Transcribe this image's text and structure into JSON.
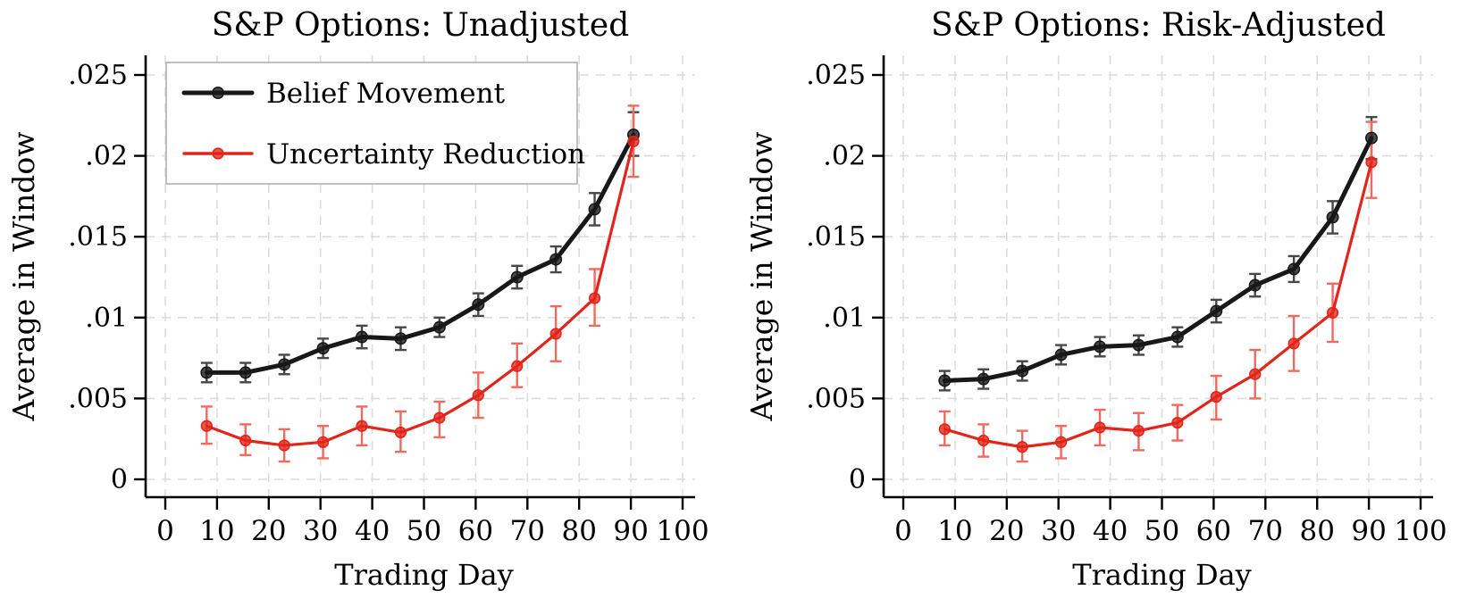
{
  "figure": {
    "background": "#ffffff"
  },
  "chart_data": [
    {
      "type": "line",
      "title": "S&P Options: Unadjusted",
      "xlabel": "Trading Day",
      "ylabel": "Average in Window",
      "x_ticks": [
        0,
        10,
        20,
        30,
        40,
        50,
        60,
        70,
        80,
        90,
        100
      ],
      "y_ticks": [
        {
          "value": 0.0,
          "label": "0"
        },
        {
          "value": 0.005,
          "label": ".005"
        },
        {
          "value": 0.01,
          "label": ".01"
        },
        {
          "value": 0.015,
          "label": ".015"
        },
        {
          "value": 0.02,
          "label": ".02"
        },
        {
          "value": 0.025,
          "label": ".025"
        }
      ],
      "xlim": [
        -3.8,
        102.4
      ],
      "ylim": [
        -0.0011,
        0.0262
      ],
      "grid": true,
      "legend": {
        "show": true,
        "position": "top-left"
      },
      "x": [
        8,
        15.5,
        23,
        30.5,
        38,
        45.5,
        53,
        60.5,
        68,
        75.5,
        83,
        90.5
      ],
      "series": [
        {
          "name": "Belief Movement",
          "color": "#181818",
          "error_color": "#474747",
          "values": [
            0.0066,
            0.0066,
            0.0071,
            0.0081,
            0.0088,
            0.0087,
            0.0094,
            0.0108,
            0.0125,
            0.0136,
            0.0167,
            0.0213
          ],
          "ci_low": [
            0.006,
            0.006,
            0.0065,
            0.0075,
            0.0081,
            0.008,
            0.0088,
            0.0101,
            0.0118,
            0.0128,
            0.0157,
            0.02
          ],
          "ci_high": [
            0.0072,
            0.0072,
            0.0077,
            0.0087,
            0.0095,
            0.0094,
            0.01,
            0.0115,
            0.0132,
            0.0144,
            0.0177,
            0.0227
          ]
        },
        {
          "name": "Uncertainty Reduction",
          "color": "#e1251b",
          "error_color": "#ee6a60",
          "values": [
            0.0033,
            0.0024,
            0.0021,
            0.0023,
            0.0033,
            0.0029,
            0.0038,
            0.0052,
            0.007,
            0.009,
            0.0112,
            0.0209
          ],
          "ci_low": [
            0.0022,
            0.0015,
            0.0011,
            0.0013,
            0.0021,
            0.0017,
            0.0026,
            0.0038,
            0.0057,
            0.0073,
            0.0095,
            0.0187
          ],
          "ci_high": [
            0.0045,
            0.0034,
            0.0031,
            0.0033,
            0.0045,
            0.0042,
            0.0048,
            0.0066,
            0.0084,
            0.0107,
            0.013,
            0.0231
          ]
        }
      ]
    },
    {
      "type": "line",
      "title": "S&P Options: Risk-Adjusted",
      "xlabel": "Trading Day",
      "ylabel": "Average in Window",
      "x_ticks": [
        0,
        10,
        20,
        30,
        40,
        50,
        60,
        70,
        80,
        90,
        100
      ],
      "y_ticks": [
        {
          "value": 0.0,
          "label": "0"
        },
        {
          "value": 0.005,
          "label": ".005"
        },
        {
          "value": 0.01,
          "label": ".01"
        },
        {
          "value": 0.015,
          "label": ".015"
        },
        {
          "value": 0.02,
          "label": ".02"
        },
        {
          "value": 0.025,
          "label": ".025"
        }
      ],
      "xlim": [
        -3.8,
        102.4
      ],
      "ylim": [
        -0.0011,
        0.0262
      ],
      "grid": true,
      "legend": {
        "show": false,
        "position": "none"
      },
      "x": [
        8,
        15.5,
        23,
        30.5,
        38,
        45.5,
        53,
        60.5,
        68,
        75.5,
        83,
        90.5
      ],
      "series": [
        {
          "name": "Belief Movement",
          "color": "#181818",
          "error_color": "#474747",
          "values": [
            0.0061,
            0.0062,
            0.0067,
            0.0077,
            0.0082,
            0.0083,
            0.0088,
            0.0104,
            0.012,
            0.013,
            0.0162,
            0.0211
          ],
          "ci_low": [
            0.0055,
            0.0056,
            0.0061,
            0.0071,
            0.0076,
            0.0077,
            0.0082,
            0.0097,
            0.0113,
            0.0122,
            0.0152,
            0.0198
          ],
          "ci_high": [
            0.0067,
            0.0068,
            0.0073,
            0.0083,
            0.0088,
            0.0089,
            0.0094,
            0.0111,
            0.0127,
            0.0138,
            0.0172,
            0.0224
          ]
        },
        {
          "name": "Uncertainty Reduction",
          "color": "#e1251b",
          "error_color": "#ee6a60",
          "values": [
            0.0031,
            0.0024,
            0.002,
            0.0023,
            0.0032,
            0.003,
            0.0035,
            0.0051,
            0.0065,
            0.0084,
            0.0103,
            0.0196
          ],
          "ci_low": [
            0.0021,
            0.0014,
            0.0011,
            0.0013,
            0.0021,
            0.0018,
            0.0024,
            0.0037,
            0.005,
            0.0067,
            0.0085,
            0.0174
          ],
          "ci_high": [
            0.0042,
            0.0034,
            0.003,
            0.0033,
            0.0043,
            0.0041,
            0.0046,
            0.0064,
            0.008,
            0.0101,
            0.0121,
            0.0221
          ]
        }
      ]
    }
  ],
  "style": {
    "grid_color": "#dcdcdc",
    "axis_color": "#000000",
    "legend_border_color": "#ababab",
    "legend_background": "#ffffff"
  }
}
